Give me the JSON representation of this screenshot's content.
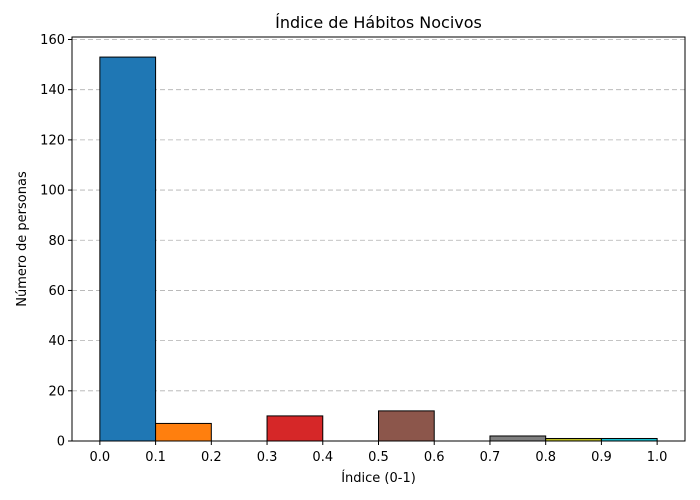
{
  "chart_data": {
    "type": "bar",
    "title": "Índice de Hábitos Nocivos",
    "xlabel": "Índice (0-1)",
    "ylabel": "Número de personas",
    "xlim": [
      -0.05,
      1.05
    ],
    "ylim": [
      0,
      161
    ],
    "grid": {
      "y": true,
      "x": false,
      "style": "dashed"
    },
    "xticks": [
      "0.0",
      "0.1",
      "0.2",
      "0.3",
      "0.4",
      "0.5",
      "0.6",
      "0.7",
      "0.8",
      "0.9",
      "1.0"
    ],
    "yticks": [
      "0",
      "20",
      "40",
      "60",
      "80",
      "100",
      "120",
      "140",
      "160"
    ],
    "bins": [
      {
        "x0": 0.0,
        "x1": 0.1,
        "value": 153,
        "color": "#1f77b4"
      },
      {
        "x0": 0.1,
        "x1": 0.2,
        "value": 7,
        "color": "#ff7f0e"
      },
      {
        "x0": 0.2,
        "x1": 0.3,
        "value": 0,
        "color": "#2ca02c"
      },
      {
        "x0": 0.3,
        "x1": 0.4,
        "value": 10,
        "color": "#d62728"
      },
      {
        "x0": 0.4,
        "x1": 0.5,
        "value": 0,
        "color": "#9467bd"
      },
      {
        "x0": 0.5,
        "x1": 0.6,
        "value": 12,
        "color": "#8c564b"
      },
      {
        "x0": 0.6,
        "x1": 0.7,
        "value": 0,
        "color": "#e377c2"
      },
      {
        "x0": 0.7,
        "x1": 0.8,
        "value": 2,
        "color": "#7f7f7f"
      },
      {
        "x0": 0.8,
        "x1": 0.9,
        "value": 1,
        "color": "#bcbd22"
      },
      {
        "x0": 0.9,
        "x1": 1.0,
        "value": 1,
        "color": "#17becf"
      }
    ]
  }
}
